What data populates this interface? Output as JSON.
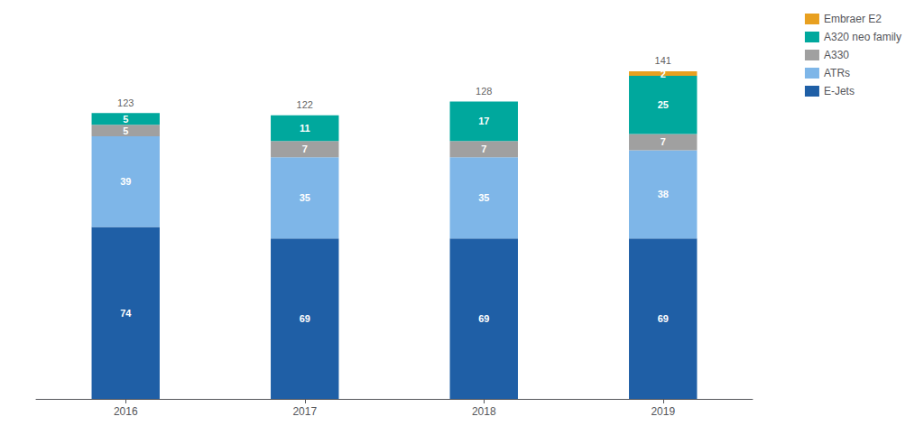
{
  "chart_data": {
    "type": "bar",
    "stacked": true,
    "categories": [
      "2016",
      "2017",
      "2018",
      "2019"
    ],
    "series": [
      {
        "name": "E-Jets",
        "color": "#1f5fa6",
        "values": [
          74,
          69,
          69,
          69
        ]
      },
      {
        "name": "ATRs",
        "color": "#7eb6e8",
        "values": [
          39,
          35,
          35,
          38
        ]
      },
      {
        "name": "A330",
        "color": "#a0a0a0",
        "values": [
          5,
          7,
          7,
          7
        ]
      },
      {
        "name": "A320 neo family",
        "color": "#00a89d",
        "values": [
          5,
          11,
          17,
          25
        ]
      },
      {
        "name": "Embraer E2",
        "color": "#e8a020",
        "values": [
          0,
          0,
          0,
          2
        ]
      }
    ],
    "totals": [
      123,
      122,
      128,
      141
    ],
    "ylim": [
      0,
      160
    ],
    "grid": false,
    "legend": "upper right",
    "data_labels": true,
    "tick_labels": "x"
  }
}
